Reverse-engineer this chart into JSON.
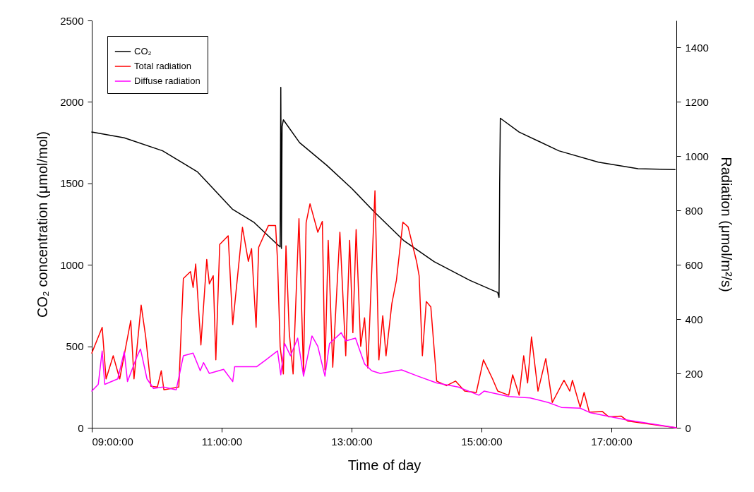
{
  "chart_data": {
    "type": "line",
    "xlabel": "Time of day",
    "ylabel": "CO₂ concentration (μmol/mol)",
    "y2label": "Radiation (μmol/m²/s)",
    "xlim": [
      9,
      18
    ],
    "xticks": [
      {
        "value": 9,
        "label": "09:00:00"
      },
      {
        "value": 11,
        "label": "11:00:00"
      },
      {
        "value": 13,
        "label": "13:00:00"
      },
      {
        "value": 15,
        "label": "15:00:00"
      },
      {
        "value": 17,
        "label": "17:00:00"
      }
    ],
    "ylim": [
      0,
      2500
    ],
    "yticks": [
      0,
      500,
      1000,
      1500,
      2000,
      2500
    ],
    "y2lim": [
      0,
      1500
    ],
    "y2ticks": [
      0,
      200,
      400,
      600,
      800,
      1000,
      1200,
      1400
    ],
    "grid": false,
    "legend": "top left",
    "line_style": "solid",
    "series": [
      {
        "name": "CO₂",
        "color": "#000000",
        "x": [
          9.0,
          9.5,
          10.09,
          10.63,
          11.17,
          11.5,
          11.83,
          11.9,
          11.91,
          11.92,
          11.93,
          11.95,
          12.2,
          12.62,
          13.0,
          13.35,
          13.8,
          14.27,
          14.82,
          15.25,
          15.27,
          15.28,
          15.29,
          15.58,
          16.19,
          16.8,
          17.41,
          17.98
        ],
        "values": [
          1815,
          1780,
          1700,
          1570,
          1340,
          1260,
          1135,
          1110,
          2090,
          1100,
          1850,
          1890,
          1750,
          1610,
          1470,
          1325,
          1150,
          1020,
          905,
          830,
          800,
          1500,
          1900,
          1815,
          1700,
          1630,
          1590,
          1585
        ]
      },
      {
        "name": "Total radiation",
        "color": "#ff0000",
        "axis": "y2",
        "x": [
          9.0,
          9.16,
          9.22,
          9.33,
          9.43,
          9.6,
          9.65,
          9.76,
          9.83,
          9.91,
          10.01,
          10.07,
          10.11,
          10.34,
          10.41,
          10.52,
          10.56,
          10.6,
          10.68,
          10.77,
          10.81,
          10.87,
          10.91,
          10.97,
          11.1,
          11.17,
          11.32,
          11.41,
          11.46,
          11.53,
          11.57,
          11.72,
          11.83,
          11.86,
          11.9,
          11.95,
          11.99,
          12.04,
          12.1,
          12.19,
          12.26,
          12.3,
          12.36,
          12.48,
          12.55,
          12.59,
          12.64,
          12.71,
          12.82,
          12.91,
          12.97,
          13.02,
          13.07,
          13.14,
          13.2,
          13.25,
          13.36,
          13.42,
          13.48,
          13.53,
          13.62,
          13.69,
          13.79,
          13.87,
          14.0,
          14.04,
          14.09,
          14.15,
          14.22,
          14.31,
          14.46,
          14.6,
          14.74,
          14.92,
          15.03,
          15.17,
          15.25,
          15.42,
          15.48,
          15.58,
          15.65,
          15.71,
          15.77,
          15.87,
          15.99,
          16.09,
          16.27,
          16.36,
          16.4,
          16.52,
          16.58,
          16.66,
          16.86,
          16.96,
          17.15,
          17.25,
          18.0
        ],
        "values": [
          275,
          370,
          180,
          265,
          180,
          395,
          180,
          452,
          335,
          153,
          150,
          210,
          140,
          150,
          550,
          575,
          517,
          603,
          305,
          620,
          530,
          560,
          250,
          675,
          707,
          380,
          738,
          613,
          660,
          370,
          665,
          745,
          745,
          615,
          300,
          198,
          670,
          353,
          198,
          770,
          205,
          755,
          825,
          720,
          760,
          213,
          690,
          223,
          720,
          265,
          690,
          350,
          730,
          300,
          405,
          220,
          873,
          250,
          413,
          265,
          457,
          543,
          757,
          740,
          613,
          560,
          265,
          465,
          445,
          172,
          155,
          172,
          135,
          130,
          250,
          180,
          135,
          120,
          195,
          120,
          265,
          165,
          335,
          135,
          255,
          93,
          175,
          135,
          175,
          75,
          130,
          57,
          60,
          40,
          43,
          25,
          0
        ]
      },
      {
        "name": "Diffuse radiation",
        "color": "#ff00ff",
        "axis": "y2",
        "x": [
          9.0,
          9.1,
          9.16,
          9.2,
          9.4,
          9.5,
          9.55,
          9.7,
          9.75,
          9.85,
          9.95,
          10.1,
          10.3,
          10.41,
          10.56,
          10.67,
          10.72,
          10.81,
          11.03,
          11.17,
          11.2,
          11.39,
          11.54,
          11.68,
          11.86,
          11.91,
          11.97,
          12.06,
          12.17,
          12.26,
          12.39,
          12.48,
          12.59,
          12.66,
          12.84,
          12.91,
          13.06,
          13.2,
          13.31,
          13.44,
          13.77,
          14.02,
          14.31,
          14.64,
          14.96,
          15.04,
          15.42,
          15.75,
          16.03,
          16.23,
          16.52,
          16.68,
          17.21,
          18.0
        ],
        "values": [
          135,
          160,
          283,
          160,
          180,
          280,
          170,
          265,
          290,
          180,
          145,
          150,
          140,
          265,
          275,
          210,
          240,
          200,
          215,
          170,
          225,
          225,
          225,
          250,
          283,
          195,
          310,
          265,
          330,
          190,
          338,
          300,
          190,
          310,
          350,
          320,
          330,
          235,
          210,
          200,
          213,
          190,
          165,
          150,
          120,
          135,
          115,
          110,
          93,
          75,
          72,
          55,
          30,
          0
        ]
      }
    ]
  }
}
